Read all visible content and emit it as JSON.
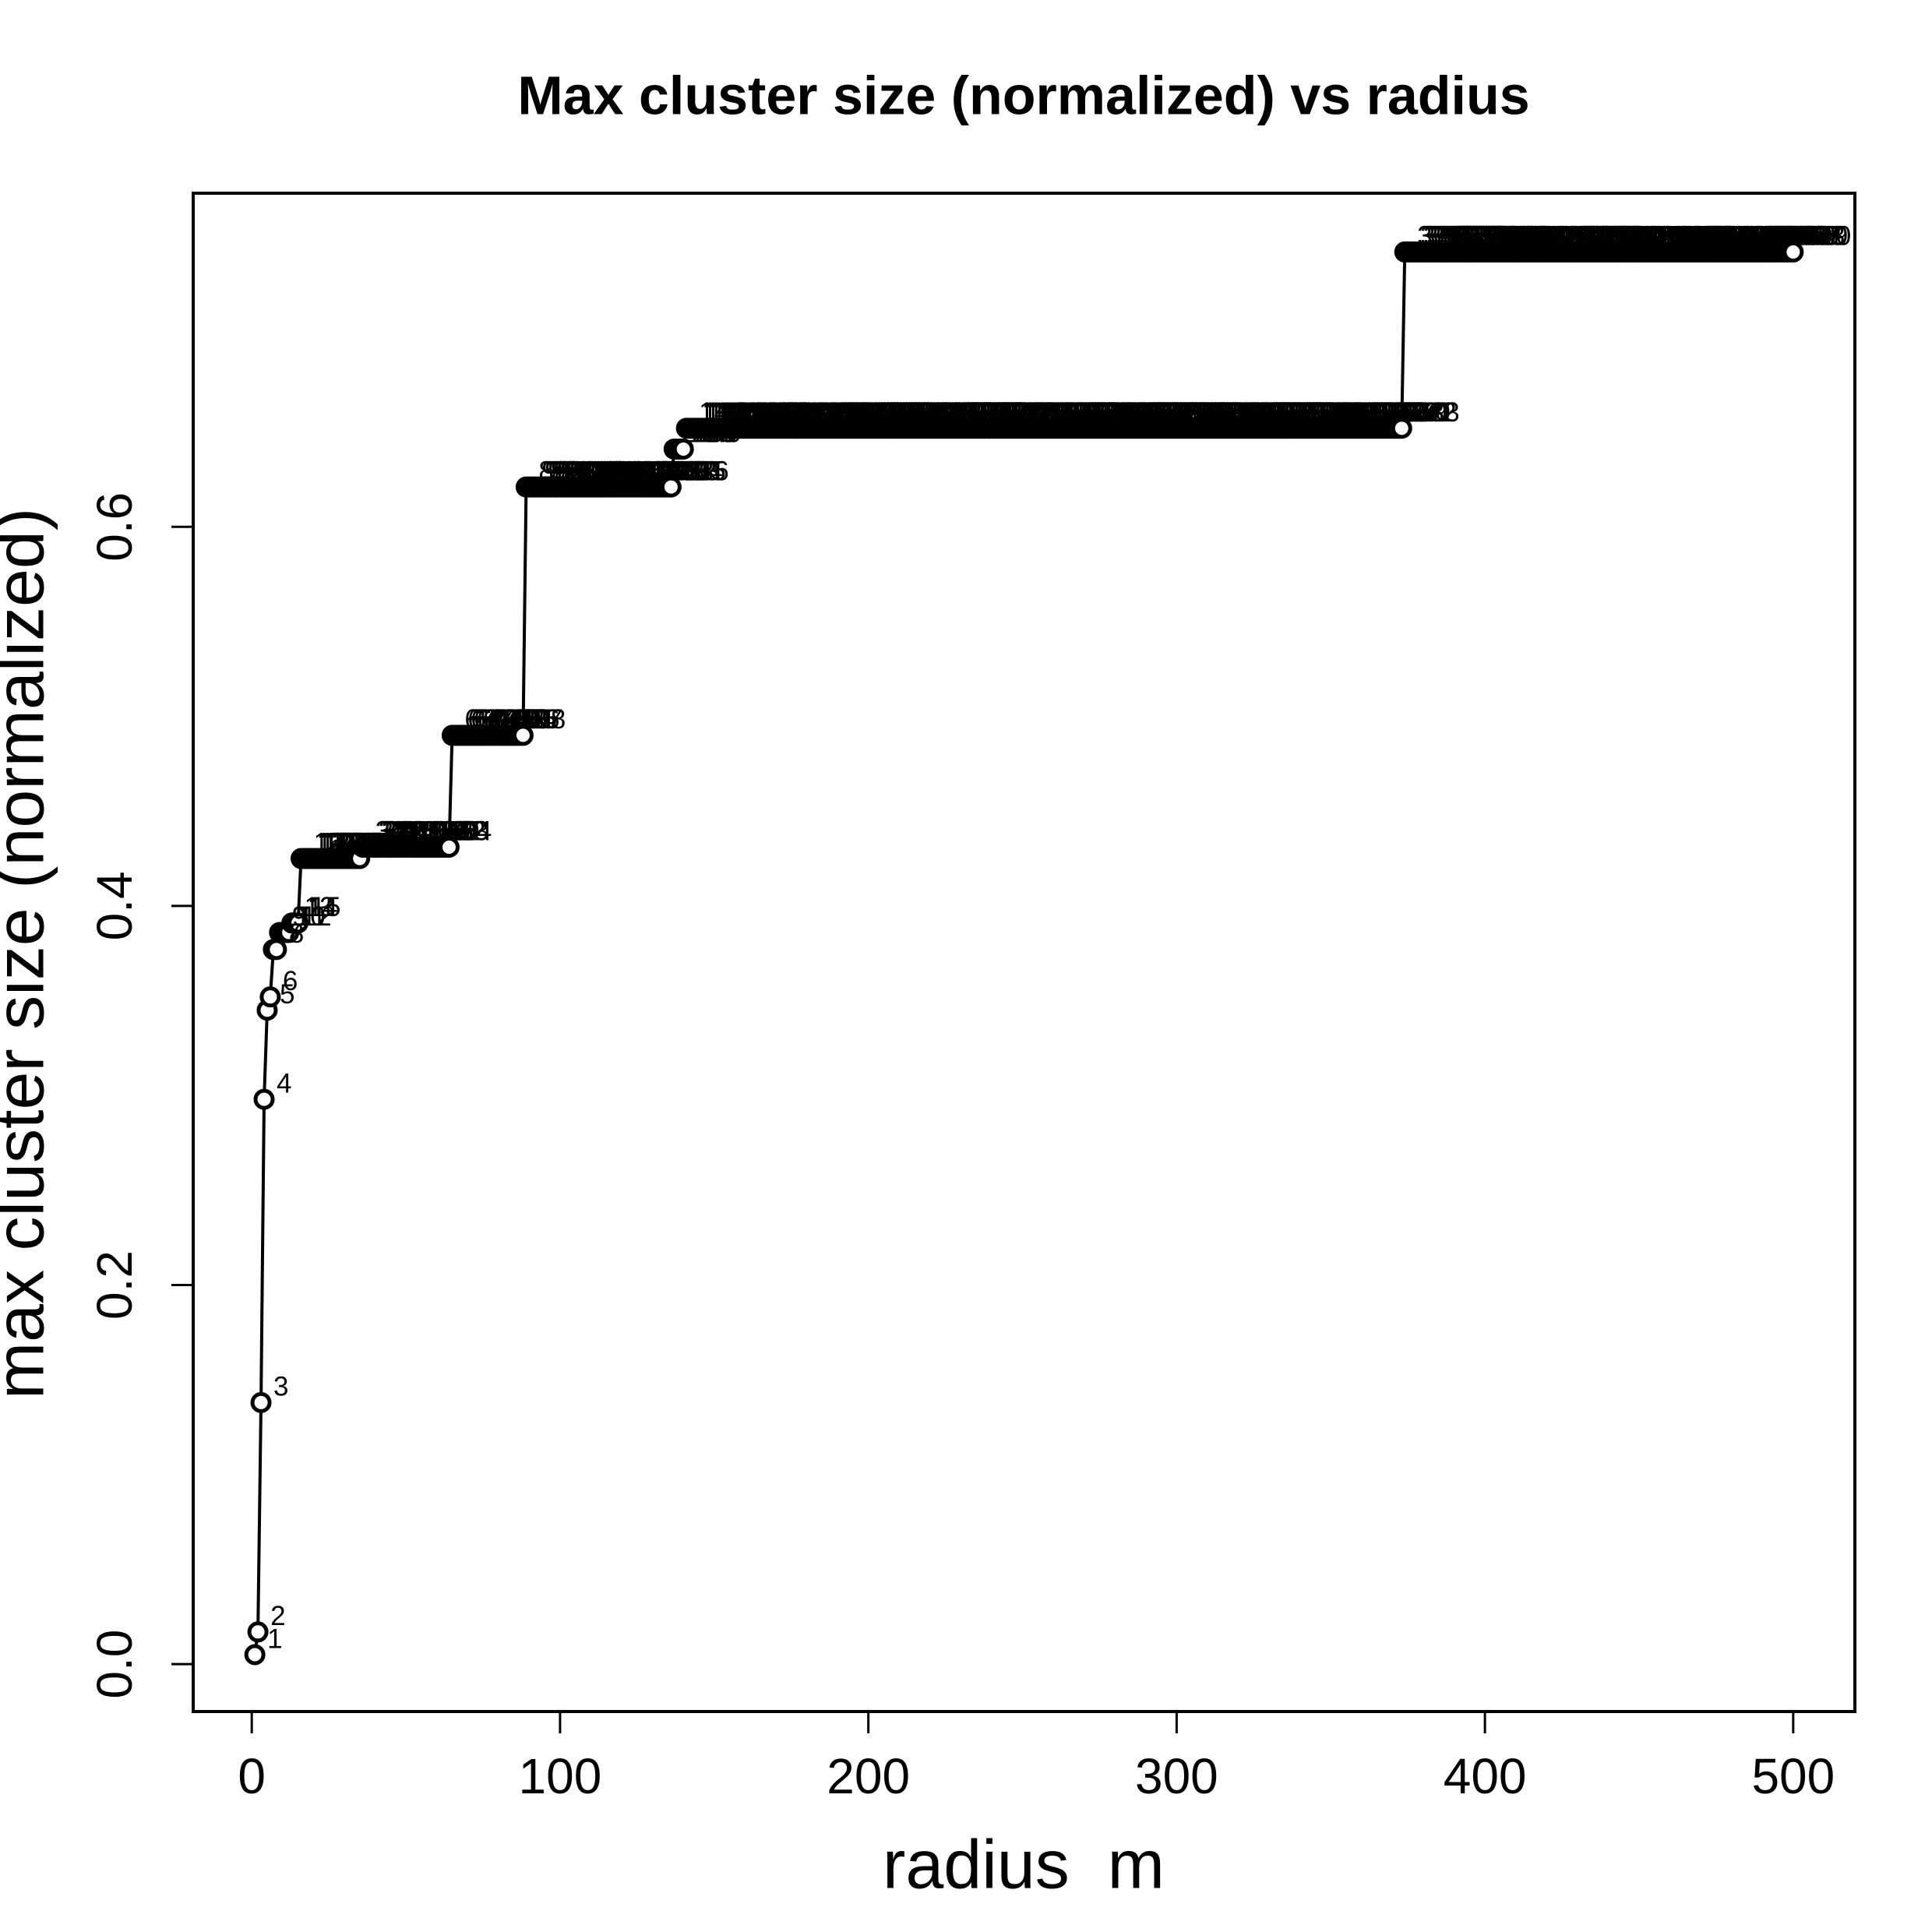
{
  "chart_data": {
    "type": "line-points",
    "title": "Max cluster size (normalized) vs radius",
    "xlabel": "radius  m",
    "ylabel": "max cluster size (normalized)",
    "color": "#000000",
    "label_color": "#ff0000",
    "xlim": [
      -19,
      520
    ],
    "ylim": [
      -0.025,
      0.776
    ],
    "xticks": [
      0,
      100,
      200,
      300,
      400,
      500
    ],
    "yticks": [
      {
        "value": 0,
        "label": "0.0"
      },
      0.2,
      0.4,
      0.6
    ],
    "x": [
      1,
      2,
      3,
      4,
      5,
      6,
      7,
      8,
      9,
      10,
      11,
      12,
      13,
      14,
      15,
      16,
      17,
      18,
      19,
      20,
      21,
      22,
      23,
      24,
      25,
      26,
      27,
      28,
      29,
      30,
      31,
      32,
      33,
      34,
      35,
      36,
      37,
      38,
      39,
      40,
      41,
      42,
      43,
      44,
      45,
      46,
      47,
      48,
      49,
      50,
      51,
      52,
      53,
      54,
      55,
      56,
      57,
      58,
      59,
      60,
      61,
      62,
      63,
      64,
      65,
      66,
      67,
      68,
      69,
      70,
      71,
      72,
      73,
      74,
      75,
      76,
      77,
      78,
      79,
      80,
      81,
      82,
      83,
      84,
      85,
      86,
      87,
      88,
      89,
      90,
      91,
      92,
      93,
      94,
      95,
      96,
      97,
      98,
      99,
      100,
      101,
      102,
      103,
      104,
      105,
      106,
      107,
      108,
      109,
      110,
      111,
      112,
      113,
      114,
      115,
      116,
      117,
      118,
      119,
      120,
      121,
      122,
      123,
      124,
      125,
      126,
      127,
      128,
      129,
      130,
      131,
      132,
      133,
      134,
      135,
      136,
      137,
      138,
      139,
      140,
      141,
      142,
      143,
      144,
      145,
      146,
      147,
      148,
      149,
      150,
      151,
      152,
      153,
      154,
      155,
      156,
      157,
      158,
      159,
      160,
      161,
      162,
      163,
      164,
      165,
      166,
      167,
      168,
      169,
      170,
      171,
      172,
      173,
      174,
      175,
      176,
      177,
      178,
      179,
      180,
      181,
      182,
      183,
      184,
      185,
      186,
      187,
      188,
      189,
      190,
      191,
      192,
      193,
      194,
      195,
      196,
      197,
      198,
      199,
      200,
      201,
      202,
      203,
      204,
      205,
      206,
      207,
      208,
      209,
      210,
      211,
      212,
      213,
      214,
      215,
      216,
      217,
      218,
      219,
      220,
      221,
      222,
      223,
      224,
      225,
      226,
      227,
      228,
      229,
      230,
      231,
      232,
      233,
      234,
      235,
      236,
      237,
      238,
      239,
      240,
      241,
      242,
      243,
      244,
      245,
      246,
      247,
      248,
      249,
      250,
      251,
      252,
      253,
      254,
      255,
      256,
      257,
      258,
      259,
      260,
      261,
      262,
      263,
      264,
      265,
      266,
      267,
      268,
      269,
      270,
      271,
      272,
      273,
      274,
      275,
      276,
      277,
      278,
      279,
      280,
      281,
      282,
      283,
      284,
      285,
      286,
      287,
      288,
      289,
      290,
      291,
      292,
      293,
      294,
      295,
      296,
      297,
      298,
      299,
      300,
      301,
      302,
      303,
      304,
      305,
      306,
      307,
      308,
      309,
      310,
      311,
      312,
      313,
      314,
      315,
      316,
      317,
      318,
      319,
      320,
      321,
      322,
      323,
      324,
      325,
      326,
      327,
      328,
      329,
      330,
      331,
      332,
      333,
      334,
      335,
      336,
      337,
      338,
      339,
      340,
      341,
      342,
      343,
      344,
      345,
      346,
      347,
      348,
      349,
      350,
      351,
      352,
      353,
      354,
      355,
      356,
      357,
      358,
      359,
      360,
      361,
      362,
      363,
      364,
      365,
      366,
      367,
      368,
      369,
      370,
      371,
      372,
      373,
      374,
      375,
      376,
      377,
      378,
      379,
      380,
      381,
      382,
      383,
      384,
      385,
      386,
      387,
      388,
      389,
      390,
      391,
      392,
      393,
      394,
      395,
      396,
      397,
      398,
      399,
      400,
      401,
      402,
      403,
      404,
      405,
      406,
      407,
      408,
      409,
      410,
      411,
      412,
      413,
      414,
      415,
      416,
      417,
      418,
      419,
      420,
      421,
      422,
      423,
      424,
      425,
      426,
      427,
      428,
      429,
      430,
      431,
      432,
      433,
      434,
      435,
      436,
      437,
      438,
      439,
      440,
      441,
      442,
      443,
      444,
      445,
      446,
      447,
      448,
      449,
      450,
      451,
      452,
      453,
      454,
      455,
      456,
      457,
      458,
      459,
      460,
      461,
      462,
      463,
      464,
      465,
      466,
      467,
      468,
      469,
      470,
      471,
      472,
      473,
      474,
      475,
      476,
      477,
      478,
      479,
      480,
      481,
      482,
      483,
      484,
      485,
      486,
      487,
      488,
      489,
      490,
      491,
      492,
      493,
      494,
      495,
      496,
      497,
      498,
      499,
      500
    ],
    "values": [
      0.005,
      0.017,
      0.138,
      0.298,
      0.345,
      0.352,
      0.377,
      0.377,
      0.386,
      0.386,
      0.386,
      0.386,
      0.391,
      0.391,
      0.391,
      0.425,
      0.425,
      0.425,
      0.425,
      0.425,
      0.425,
      0.425,
      0.425,
      0.425,
      0.425,
      0.425,
      0.425,
      0.425,
      0.425,
      0.425,
      0.425,
      0.425,
      0.425,
      0.425,
      0.425,
      0.431,
      0.431,
      0.431,
      0.431,
      0.431,
      0.431,
      0.431,
      0.431,
      0.431,
      0.431,
      0.431,
      0.431,
      0.431,
      0.431,
      0.431,
      0.431,
      0.431,
      0.431,
      0.431,
      0.431,
      0.431,
      0.431,
      0.431,
      0.431,
      0.431,
      0.431,
      0.431,
      0.431,
      0.431,
      0.49,
      0.49,
      0.49,
      0.49,
      0.49,
      0.49,
      0.49,
      0.49,
      0.49,
      0.49,
      0.49,
      0.49,
      0.49,
      0.49,
      0.49,
      0.49,
      0.49,
      0.49,
      0.49,
      0.49,
      0.49,
      0.49,
      0.49,
      0.49,
      0.621,
      0.621,
      0.621,
      0.621,
      0.621,
      0.621,
      0.621,
      0.621,
      0.621,
      0.621,
      0.621,
      0.621,
      0.621,
      0.621,
      0.621,
      0.621,
      0.621,
      0.621,
      0.621,
      0.621,
      0.621,
      0.621,
      0.621,
      0.621,
      0.621,
      0.621,
      0.621,
      0.621,
      0.621,
      0.621,
      0.621,
      0.621,
      0.621,
      0.621,
      0.621,
      0.621,
      0.621,
      0.621,
      0.621,
      0.621,
      0.621,
      0.621,
      0.621,
      0.621,
      0.621,
      0.621,
      0.621,
      0.621,
      0.641,
      0.641,
      0.641,
      0.641,
      0.652,
      0.652,
      0.652,
      0.652,
      0.652,
      0.652,
      0.652,
      0.652,
      0.652,
      0.652,
      0.652,
      0.652,
      0.652,
      0.652,
      0.652,
      0.652,
      0.652,
      0.652,
      0.652,
      0.652,
      0.652,
      0.652,
      0.652,
      0.652,
      0.652,
      0.652,
      0.652,
      0.652,
      0.652,
      0.652,
      0.652,
      0.652,
      0.652,
      0.652,
      0.652,
      0.652,
      0.652,
      0.652,
      0.652,
      0.652,
      0.652,
      0.652,
      0.652,
      0.652,
      0.652,
      0.652,
      0.652,
      0.652,
      0.652,
      0.652,
      0.652,
      0.652,
      0.652,
      0.652,
      0.652,
      0.652,
      0.652,
      0.652,
      0.652,
      0.652,
      0.652,
      0.652,
      0.652,
      0.652,
      0.652,
      0.652,
      0.652,
      0.652,
      0.652,
      0.652,
      0.652,
      0.652,
      0.652,
      0.652,
      0.652,
      0.652,
      0.652,
      0.652,
      0.652,
      0.652,
      0.652,
      0.652,
      0.652,
      0.652,
      0.652,
      0.652,
      0.652,
      0.652,
      0.652,
      0.652,
      0.652,
      0.652,
      0.652,
      0.652,
      0.652,
      0.652,
      0.652,
      0.652,
      0.652,
      0.652,
      0.652,
      0.652,
      0.652,
      0.652,
      0.652,
      0.652,
      0.652,
      0.652,
      0.652,
      0.652,
      0.652,
      0.652,
      0.652,
      0.652,
      0.652,
      0.652,
      0.652,
      0.652,
      0.652,
      0.652,
      0.652,
      0.652,
      0.652,
      0.652,
      0.652,
      0.652,
      0.652,
      0.652,
      0.652,
      0.652,
      0.652,
      0.652,
      0.652,
      0.652,
      0.652,
      0.652,
      0.652,
      0.652,
      0.652,
      0.652,
      0.652,
      0.652,
      0.652,
      0.652,
      0.652,
      0.652,
      0.652,
      0.652,
      0.652,
      0.652,
      0.652,
      0.652,
      0.652,
      0.652,
      0.652,
      0.652,
      0.652,
      0.652,
      0.652,
      0.652,
      0.652,
      0.652,
      0.652,
      0.652,
      0.652,
      0.652,
      0.652,
      0.652,
      0.652,
      0.652,
      0.652,
      0.652,
      0.652,
      0.652,
      0.652,
      0.652,
      0.652,
      0.652,
      0.652,
      0.652,
      0.652,
      0.652,
      0.652,
      0.652,
      0.652,
      0.652,
      0.652,
      0.652,
      0.652,
      0.652,
      0.652,
      0.652,
      0.652,
      0.652,
      0.652,
      0.652,
      0.652,
      0.652,
      0.652,
      0.652,
      0.652,
      0.652,
      0.652,
      0.652,
      0.652,
      0.652,
      0.652,
      0.652,
      0.652,
      0.652,
      0.652,
      0.652,
      0.652,
      0.652,
      0.652,
      0.652,
      0.652,
      0.652,
      0.652,
      0.652,
      0.652,
      0.652,
      0.652,
      0.652,
      0.652,
      0.652,
      0.652,
      0.652,
      0.652,
      0.652,
      0.652,
      0.652,
      0.652,
      0.745,
      0.745,
      0.745,
      0.745,
      0.745,
      0.745,
      0.745,
      0.745,
      0.745,
      0.745,
      0.745,
      0.745,
      0.745,
      0.745,
      0.745,
      0.745,
      0.745,
      0.745,
      0.745,
      0.745,
      0.745,
      0.745,
      0.745,
      0.745,
      0.745,
      0.745,
      0.745,
      0.745,
      0.745,
      0.745,
      0.745,
      0.745,
      0.745,
      0.745,
      0.745,
      0.745,
      0.745,
      0.745,
      0.745,
      0.745,
      0.745,
      0.745,
      0.745,
      0.745,
      0.745,
      0.745,
      0.745,
      0.745,
      0.745,
      0.745,
      0.745,
      0.745,
      0.745,
      0.745,
      0.745,
      0.745,
      0.745,
      0.745,
      0.745,
      0.745,
      0.745,
      0.745,
      0.745,
      0.745,
      0.745,
      0.745,
      0.745,
      0.745,
      0.745,
      0.745,
      0.745,
      0.745,
      0.745,
      0.745,
      0.745,
      0.745,
      0.745,
      0.745,
      0.745,
      0.745,
      0.745,
      0.745,
      0.745,
      0.745,
      0.745,
      0.745,
      0.745,
      0.745,
      0.745,
      0.745,
      0.745,
      0.745,
      0.745,
      0.745,
      0.745,
      0.745,
      0.745,
      0.745,
      0.745,
      0.745,
      0.745,
      0.745,
      0.745,
      0.745,
      0.745,
      0.745,
      0.745,
      0.745,
      0.745,
      0.745,
      0.745,
      0.745,
      0.745,
      0.745,
      0.745,
      0.745,
      0.745,
      0.745,
      0.745,
      0.745,
      0.745,
      0.745,
      0.745,
      0.745,
      0.745,
      0.745,
      0.745
    ]
  }
}
